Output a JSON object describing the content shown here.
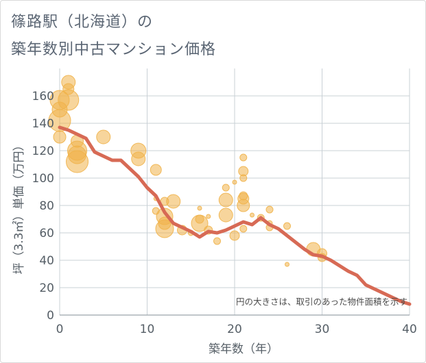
{
  "title_line1": "篠路駅（北海道）の",
  "title_line2": "築年数別中古マンション価格",
  "chart_data": {
    "type": "scatter",
    "xlabel": "築年数（年）",
    "ylabel": "坪（3.3㎡）単価（万円）",
    "xlim": [
      0,
      40
    ],
    "ylim": [
      0,
      180
    ],
    "xticks": [
      0,
      10,
      20,
      30,
      40
    ],
    "yticks": [
      0,
      20,
      40,
      60,
      80,
      100,
      120,
      140,
      160
    ],
    "grid": true,
    "note": "円の大きさは、取引のあった物件面積を示す",
    "colors": {
      "bubble": "#f0b24a",
      "line": "#d76a55",
      "grid": "#c9d0d6"
    },
    "bubbles": [
      {
        "x": 0,
        "y": 157,
        "s": 14
      },
      {
        "x": 0,
        "y": 150,
        "s": 11
      },
      {
        "x": 0,
        "y": 142,
        "s": 16
      },
      {
        "x": 0,
        "y": 130,
        "s": 9
      },
      {
        "x": 1,
        "y": 170,
        "s": 10
      },
      {
        "x": 1,
        "y": 165,
        "s": 8
      },
      {
        "x": 1,
        "y": 157,
        "s": 15
      },
      {
        "x": 2,
        "y": 127,
        "s": 9
      },
      {
        "x": 2,
        "y": 120,
        "s": 14
      },
      {
        "x": 2,
        "y": 117,
        "s": 13
      },
      {
        "x": 2,
        "y": 112,
        "s": 16
      },
      {
        "x": 5,
        "y": 130,
        "s": 10
      },
      {
        "x": 9,
        "y": 120,
        "s": 11
      },
      {
        "x": 9,
        "y": 114,
        "s": 10
      },
      {
        "x": 11,
        "y": 106,
        "s": 8
      },
      {
        "x": 11,
        "y": 85,
        "s": 3
      },
      {
        "x": 11,
        "y": 76,
        "s": 5
      },
      {
        "x": 12,
        "y": 83,
        "s": 6
      },
      {
        "x": 12,
        "y": 72,
        "s": 12
      },
      {
        "x": 12,
        "y": 67,
        "s": 9
      },
      {
        "x": 12,
        "y": 63,
        "s": 13
      },
      {
        "x": 13,
        "y": 83,
        "s": 10
      },
      {
        "x": 14,
        "y": 62,
        "s": 7
      },
      {
        "x": 15,
        "y": 60,
        "s": 4
      },
      {
        "x": 16,
        "y": 78,
        "s": 3
      },
      {
        "x": 16,
        "y": 70,
        "s": 6
      },
      {
        "x": 16,
        "y": 67,
        "s": 12
      },
      {
        "x": 17,
        "y": 72,
        "s": 3
      },
      {
        "x": 17,
        "y": 62,
        "s": 6
      },
      {
        "x": 18,
        "y": 54,
        "s": 5
      },
      {
        "x": 19,
        "y": 93,
        "s": 5
      },
      {
        "x": 19,
        "y": 84,
        "s": 10
      },
      {
        "x": 19,
        "y": 73,
        "s": 10
      },
      {
        "x": 20,
        "y": 97,
        "s": 3
      },
      {
        "x": 20,
        "y": 58,
        "s": 7
      },
      {
        "x": 21,
        "y": 115,
        "s": 5
      },
      {
        "x": 21,
        "y": 105,
        "s": 7
      },
      {
        "x": 21,
        "y": 100,
        "s": 5
      },
      {
        "x": 21,
        "y": 87,
        "s": 6
      },
      {
        "x": 21,
        "y": 85,
        "s": 8
      },
      {
        "x": 21,
        "y": 80,
        "s": 9
      },
      {
        "x": 21,
        "y": 63,
        "s": 5
      },
      {
        "x": 22,
        "y": 73,
        "s": 3
      },
      {
        "x": 23,
        "y": 71,
        "s": 5
      },
      {
        "x": 24,
        "y": 77,
        "s": 5
      },
      {
        "x": 24,
        "y": 67,
        "s": 4
      },
      {
        "x": 24,
        "y": 64,
        "s": 5
      },
      {
        "x": 26,
        "y": 65,
        "s": 5
      },
      {
        "x": 26,
        "y": 37,
        "s": 3
      },
      {
        "x": 29,
        "y": 48,
        "s": 10
      },
      {
        "x": 30,
        "y": 45,
        "s": 7
      },
      {
        "x": 30,
        "y": 42,
        "s": 6
      }
    ],
    "trend": {
      "x": [
        0,
        1,
        2,
        3,
        4,
        5,
        6,
        7,
        8,
        9,
        10,
        11,
        12,
        13,
        14,
        15,
        16,
        17,
        18,
        19,
        20,
        21,
        22,
        23,
        24,
        25,
        26,
        27,
        28,
        29,
        30,
        31,
        32,
        33,
        34,
        35,
        36,
        37,
        38,
        39,
        40
      ],
      "y": [
        137,
        135,
        132,
        129,
        119,
        116,
        113,
        113,
        107,
        101,
        93,
        87,
        75,
        67,
        64,
        61,
        57,
        61,
        60,
        62,
        65,
        68,
        66,
        71,
        66,
        63,
        58,
        53,
        48,
        44,
        43,
        40,
        36,
        32,
        29,
        22,
        19,
        16,
        13,
        10,
        8
      ]
    }
  }
}
